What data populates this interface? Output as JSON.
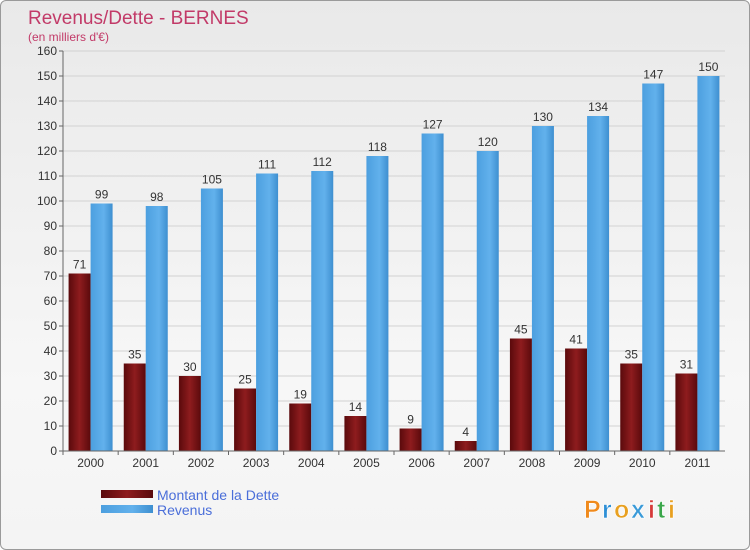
{
  "logo": {
    "text": "Proxiti",
    "letter_colors": [
      "#f08a1c",
      "#2e8fd6",
      "#e8a020",
      "#3a9ad8",
      "#d63a3a",
      "#3aa64a",
      "#e8a020"
    ]
  },
  "colors": {
    "dette": "#7a1214",
    "revenus": "#56a8e6"
  },
  "chart_data": {
    "type": "bar",
    "title": "Revenus/Dette - BERNES",
    "subtitle": "(en milliers d'€)",
    "xlabel": "",
    "ylabel": "",
    "ylim": [
      0,
      160
    ],
    "yticks": [
      0,
      10,
      20,
      30,
      40,
      50,
      60,
      70,
      80,
      90,
      100,
      110,
      120,
      130,
      140,
      150,
      160
    ],
    "grid": true,
    "legend_position": "bottom-left",
    "categories": [
      "2000",
      "2001",
      "2002",
      "2003",
      "2004",
      "2005",
      "2006",
      "2007",
      "2008",
      "2009",
      "2010",
      "2011"
    ],
    "series": [
      {
        "name": "Montant de la Dette",
        "values": [
          71,
          35,
          30,
          25,
          19,
          14,
          9,
          4,
          45,
          41,
          35,
          31
        ]
      },
      {
        "name": "Revenus",
        "values": [
          99,
          98,
          105,
          111,
          112,
          118,
          127,
          120,
          130,
          134,
          147,
          150
        ]
      }
    ]
  }
}
